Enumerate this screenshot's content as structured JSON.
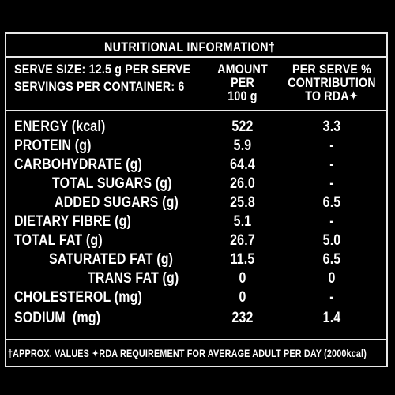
{
  "title": "NUTRITIONAL INFORMATION",
  "title_mark": "†",
  "left_header": {
    "serve_size": "SERVE SIZE: 12.5 g PER SERVE",
    "servings": "SERVINGS PER CONTAINER: 6"
  },
  "columns": {
    "amount": [
      "AMOUNT",
      "PER",
      "100 g"
    ],
    "per_serve": [
      "PER SERVE %",
      "CONTRIBUTION",
      "TO RDA✦"
    ]
  },
  "rows": [
    {
      "label": "ENERGY (kcal)",
      "amount": "522",
      "rda": "3.3"
    },
    {
      "label": "PROTEIN (g)",
      "amount": "5.9",
      "rda": "-"
    },
    {
      "label": "CARBOHYDRATE (g)",
      "amount": "64.4",
      "rda": "-"
    },
    {
      "label": "TOTAL SUGARS (g)",
      "amount": "26.0",
      "rda": "-"
    },
    {
      "label": "ADDED SUGARS (g)",
      "amount": "25.8",
      "rda": "6.5"
    },
    {
      "label": "DIETARY FIBRE (g)",
      "amount": "5.1",
      "rda": "-"
    },
    {
      "label": "TOTAL FAT (g)",
      "amount": "26.7",
      "rda": "5.0"
    },
    {
      "label": "SATURATED FAT (g)",
      "amount": "11.5",
      "rda": "6.5"
    },
    {
      "label": "TRANS FAT (g)",
      "amount": "0",
      "rda": "0"
    },
    {
      "label": "CHOLESTEROL (mg)",
      "amount": "0",
      "rda": "-"
    },
    {
      "label": "SODIUM  (mg)",
      "amount": "232",
      "rda": "1.4"
    }
  ],
  "footnote": "†APPROX. VALUES ✦RDA REQUIREMENT FOR AVERAGE ADULT PER DAY (2000kcal)"
}
